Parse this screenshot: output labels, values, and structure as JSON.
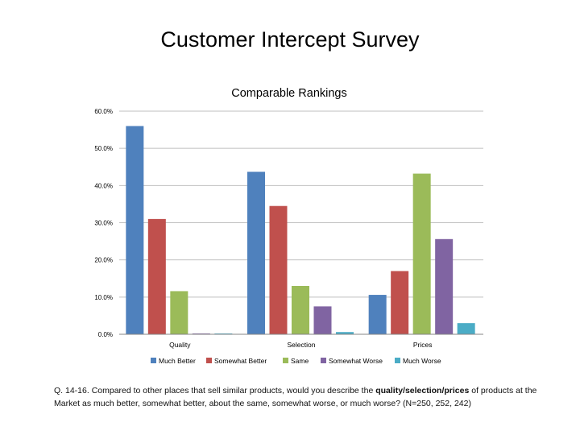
{
  "slide": {
    "title": "Customer Intercept Survey"
  },
  "caption": {
    "part1": "Q. 14-16. Compared to other places that sell similar products, would you describe the ",
    "emphasis": "quality/selection/prices",
    "part2": " of products at the Market as much better, somewhat better, about the same, somewhat worse, or much worse? (N=250, 252, 242)"
  },
  "chart_data": {
    "type": "bar",
    "title": "Comparable Rankings",
    "xlabel": "",
    "ylabel": "",
    "categories": [
      "Quality",
      "Selection",
      "Prices"
    ],
    "ylim": [
      0,
      60
    ],
    "yticks": [
      "0.0%",
      "10.0%",
      "20.0%",
      "30.0%",
      "40.0%",
      "50.0%",
      "60.0%"
    ],
    "ytick_values": [
      0,
      10,
      20,
      30,
      40,
      50,
      60
    ],
    "grid": true,
    "legend": "bottom",
    "series": [
      {
        "name": "Much Better",
        "color": "#4F81BD",
        "values": [
          56.0,
          43.7,
          10.6
        ]
      },
      {
        "name": "Somewhat Better",
        "color": "#C0504D",
        "values": [
          31.0,
          34.5,
          17.0
        ]
      },
      {
        "name": "Same",
        "color": "#9BBB59",
        "values": [
          11.6,
          13.0,
          43.2
        ]
      },
      {
        "name": "Somewhat Worse",
        "color": "#8064A2",
        "values": [
          0.2,
          7.5,
          25.6
        ]
      },
      {
        "name": "Much Worse",
        "color": "#4BACC6",
        "values": [
          0.2,
          0.6,
          3.0
        ]
      }
    ]
  }
}
